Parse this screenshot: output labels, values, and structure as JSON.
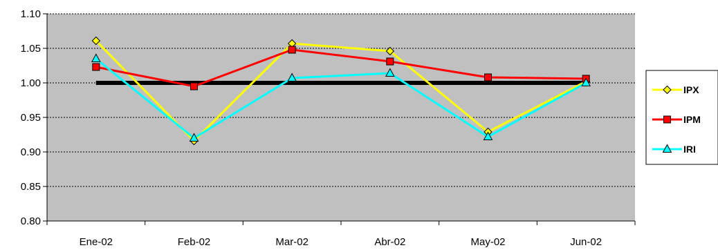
{
  "chart_data": {
    "type": "line",
    "title": "",
    "xlabel": "",
    "ylabel": "",
    "categories": [
      "Ene-02",
      "Feb-02",
      "Mar-02",
      "Abr-02",
      "May-02",
      "Jun-02"
    ],
    "ylim": [
      0.8,
      1.1
    ],
    "yticks": [
      "0.80",
      "0.85",
      "0.90",
      "0.95",
      "1.00",
      "1.05",
      "1.10"
    ],
    "grid": "horizontal dotted",
    "plot_background": "#C0C0C0",
    "legend_position": "right",
    "reference_line": {
      "value": 1.0,
      "color": "#000000"
    },
    "series": [
      {
        "name": "IPX",
        "values": [
          1.061,
          0.916,
          1.057,
          1.046,
          0.929,
          1.002
        ],
        "color": "#FFFF00",
        "marker": "diamond",
        "marker_fill": "#FFFF00"
      },
      {
        "name": "IPM",
        "values": [
          1.023,
          0.995,
          1.048,
          1.031,
          1.008,
          1.006
        ],
        "color": "#FF0000",
        "marker": "square",
        "marker_fill": "#FF0000"
      },
      {
        "name": "IRI",
        "values": [
          1.035,
          0.92,
          1.007,
          1.014,
          0.922,
          1.0
        ],
        "color": "#00FFFF",
        "marker": "triangle",
        "marker_fill": "#00FFFF"
      }
    ]
  }
}
